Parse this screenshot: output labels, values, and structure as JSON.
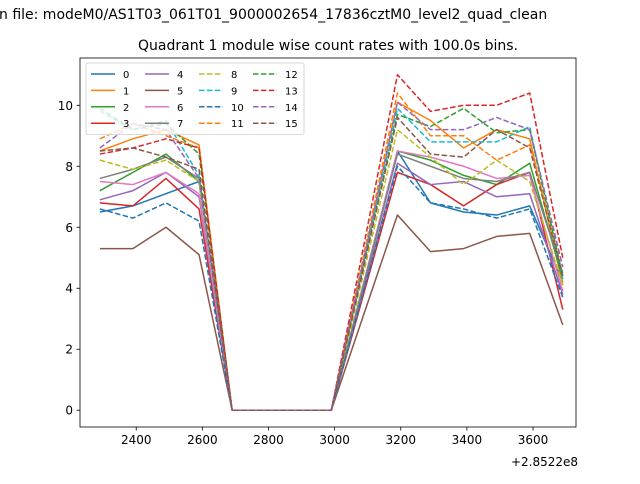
{
  "chart_data": {
    "type": "line",
    "suptitle": "n file: modeM0/AS1T03_061T01_9000002654_17836cztM0_level2_quad_clean",
    "title": "Quadrant 1 module wise count rates with 100.0s bins.",
    "xlabel": "",
    "ylabel": "",
    "x_offset_label": "+2.8522e8",
    "xlim": [
      2230,
      3730
    ],
    "ylim": [
      -0.55,
      11.55
    ],
    "xticks": [
      2400,
      2600,
      2800,
      3000,
      3200,
      3400,
      3600
    ],
    "yticks": [
      0,
      2,
      4,
      6,
      8,
      10
    ],
    "grid": false,
    "legend_position": "top-left",
    "legend_columns": 4,
    "x": [
      2290,
      2390,
      2490,
      2590,
      2690,
      2790,
      2890,
      2990,
      3190,
      3290,
      3390,
      3490,
      3590,
      3690
    ],
    "series": [
      {
        "name": "0",
        "color": "#1f77b4",
        "dash": "solid",
        "values": [
          6.5,
          6.7,
          7.1,
          7.5,
          0,
          0,
          0,
          0,
          8.5,
          6.8,
          6.5,
          6.4,
          6.7,
          4.2
        ]
      },
      {
        "name": "1",
        "color": "#ff7f0e",
        "dash": "solid",
        "values": [
          8.5,
          8.9,
          9.2,
          8.7,
          0,
          0,
          0,
          0,
          10.1,
          9.5,
          8.6,
          9.2,
          8.9,
          4.1
        ]
      },
      {
        "name": "2",
        "color": "#2ca02c",
        "dash": "solid",
        "values": [
          7.2,
          7.8,
          8.4,
          7.5,
          0,
          0,
          0,
          0,
          8.5,
          8.2,
          7.7,
          7.4,
          8.1,
          4.3
        ]
      },
      {
        "name": "3",
        "color": "#d62728",
        "dash": "solid",
        "values": [
          6.8,
          6.7,
          7.6,
          6.6,
          0,
          0,
          0,
          0,
          7.8,
          7.4,
          6.7,
          7.4,
          7.8,
          3.3
        ]
      },
      {
        "name": "4",
        "color": "#9467bd",
        "dash": "solid",
        "values": [
          6.9,
          7.2,
          7.8,
          7.0,
          0,
          0,
          0,
          0,
          8.1,
          7.4,
          7.5,
          7.0,
          7.1,
          3.8
        ]
      },
      {
        "name": "5",
        "color": "#8c564b",
        "dash": "solid",
        "values": [
          5.3,
          5.3,
          6.0,
          5.1,
          0,
          0,
          0,
          0,
          6.4,
          5.2,
          5.3,
          5.7,
          5.8,
          2.8
        ]
      },
      {
        "name": "6",
        "color": "#e377c2",
        "dash": "solid",
        "values": [
          7.5,
          7.4,
          7.8,
          7.1,
          0,
          0,
          0,
          0,
          8.5,
          8.3,
          8.0,
          7.6,
          7.7,
          3.9
        ]
      },
      {
        "name": "7",
        "color": "#7f7f7f",
        "dash": "solid",
        "values": [
          7.6,
          7.9,
          8.3,
          7.6,
          0,
          0,
          0,
          0,
          8.4,
          8.0,
          7.6,
          7.5,
          7.8,
          4.5
        ]
      },
      {
        "name": "8",
        "color": "#bcbd22",
        "dash": "dashed",
        "values": [
          8.2,
          7.9,
          8.2,
          7.5,
          0,
          0,
          0,
          0,
          9.2,
          8.3,
          7.4,
          8.2,
          7.5,
          4.1
        ]
      },
      {
        "name": "9",
        "color": "#17becf",
        "dash": "dashed",
        "values": [
          9.8,
          9.2,
          9.5,
          7.7,
          0,
          0,
          0,
          0,
          9.9,
          8.8,
          8.8,
          8.8,
          9.3,
          4.3
        ]
      },
      {
        "name": "10",
        "color": "#1f77b4",
        "dash": "dashed",
        "values": [
          6.6,
          6.3,
          6.8,
          6.2,
          0,
          0,
          0,
          0,
          8.0,
          6.8,
          6.6,
          6.3,
          6.6,
          3.7
        ]
      },
      {
        "name": "11",
        "color": "#ff7f0e",
        "dash": "dashed",
        "values": [
          8.9,
          9.4,
          9.0,
          8.6,
          0,
          0,
          0,
          0,
          10.4,
          9.0,
          9.0,
          8.2,
          8.7,
          4.7
        ]
      },
      {
        "name": "12",
        "color": "#2ca02c",
        "dash": "dashed",
        "values": [
          9.9,
          9.2,
          9.4,
          8.4,
          0,
          0,
          0,
          0,
          9.7,
          9.3,
          9.9,
          9.1,
          9.2,
          4.4
        ]
      },
      {
        "name": "13",
        "color": "#d62728",
        "dash": "dashed",
        "values": [
          8.4,
          8.6,
          8.9,
          8.6,
          0,
          0,
          0,
          0,
          11.0,
          9.8,
          10.0,
          10.0,
          10.4,
          5.0
        ]
      },
      {
        "name": "14",
        "color": "#9467bd",
        "dash": "dashed",
        "values": [
          8.6,
          9.4,
          9.2,
          7.6,
          0,
          0,
          0,
          0,
          10.1,
          9.2,
          9.2,
          9.6,
          9.2,
          4.7
        ]
      },
      {
        "name": "15",
        "color": "#8c564b",
        "dash": "dashed",
        "values": [
          8.5,
          8.6,
          8.3,
          7.9,
          0,
          0,
          0,
          0,
          9.6,
          8.4,
          8.3,
          9.2,
          8.6,
          4.4
        ]
      }
    ]
  }
}
